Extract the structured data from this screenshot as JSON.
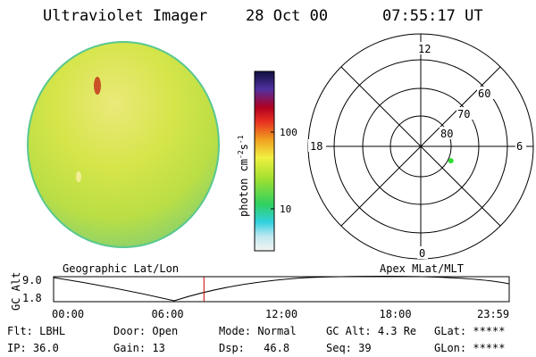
{
  "header": {
    "title": "Ultraviolet Imager",
    "date": "28 Oct 00",
    "time": "07:55:17 UT"
  },
  "colorbar": {
    "unit_label": "photon cm",
    "unit_exp1": "-2",
    "unit_s": "s",
    "unit_exp2": "-1",
    "tick_100": "100",
    "tick_10": "10",
    "scale": "log"
  },
  "polar_plot": {
    "mlt_labels": {
      "top": "12",
      "bottom": "0",
      "left": "18",
      "right": "6"
    },
    "lat_labels": [
      "60",
      "70",
      "80"
    ],
    "data_point": {
      "mlt_hours": 4.3,
      "mlat_deg": 78.5,
      "color": "#33dd33"
    }
  },
  "timeline": {
    "left_label": "Geographic Lat/Lon",
    "right_label": "Apex MLat/MLT",
    "y_axis_label": "GC Alt",
    "y_max": "9.0",
    "y_min": "1.8",
    "x_ticks": [
      "00:00",
      "06:00",
      "12:00",
      "18:00",
      "23:59"
    ],
    "current_time_hours": 7.92,
    "marker_color": "#cc0000"
  },
  "info": {
    "flt_label": "Flt:",
    "flt_value": "LBHL",
    "ip_label": "IP:",
    "ip_value": "36.0",
    "door_label": "Door:",
    "door_value": "Open",
    "gain_label": "Gain:",
    "gain_value": "13",
    "mode_label": "Mode:",
    "mode_value": "Normal",
    "dsp_label": "Dsp:",
    "dsp_value": "46.8",
    "gcalt_label": "GC Alt:",
    "gcalt_value": "4.3 Re",
    "seq_label": "Seq:",
    "seq_value": "39",
    "glat_label": "GLat:",
    "glat_value": "*****",
    "glon_label": "GLon:",
    "glon_value": "*****"
  }
}
